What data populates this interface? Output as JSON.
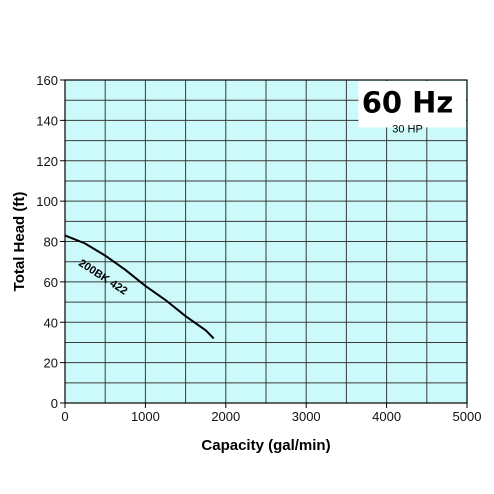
{
  "chart_data": {
    "type": "line",
    "title": "60 Hz",
    "subtitle": "30 HP",
    "xlabel": "Capacity (gal/min)",
    "ylabel": "Total Head (ft)",
    "xlim": [
      0,
      5000
    ],
    "ylim": [
      0,
      160
    ],
    "xticks": [
      0,
      1000,
      2000,
      3000,
      4000,
      5000
    ],
    "yticks": [
      0,
      20,
      40,
      60,
      80,
      100,
      120,
      140,
      160
    ],
    "grid": true,
    "colors": {
      "plot_bg": "#ccfafa",
      "grid": "#3a3a3a",
      "line": "#000000"
    },
    "series": [
      {
        "name": "200BK 422",
        "x": [
          0,
          250,
          500,
          750,
          1000,
          1250,
          1500,
          1750,
          1850
        ],
        "y": [
          83,
          79,
          73,
          66,
          58,
          51,
          43,
          36,
          32
        ]
      }
    ]
  }
}
